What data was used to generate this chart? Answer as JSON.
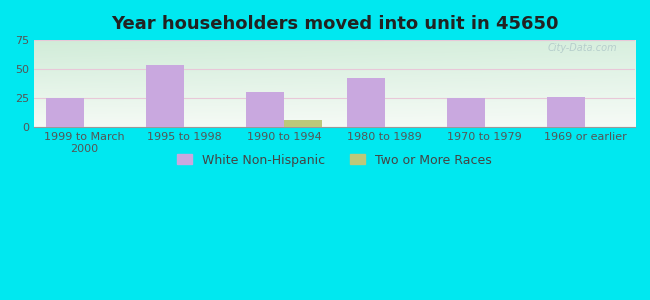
{
  "title": "Year householders moved into unit in 45650",
  "categories": [
    "1999 to March\n2000",
    "1995 to 1998",
    "1990 to 1994",
    "1980 to 1989",
    "1970 to 1979",
    "1969 or earlier"
  ],
  "white_non_hispanic": [
    25,
    54,
    30,
    42,
    25,
    26
  ],
  "two_or_more_races": [
    0,
    0,
    6,
    0,
    0,
    0
  ],
  "bar_color_white": "#c9a8df",
  "bar_color_two": "#bcc87a",
  "ylim": [
    0,
    75
  ],
  "yticks": [
    0,
    25,
    50,
    75
  ],
  "background_outer": "#00e8f0",
  "grad_top": "#d0ecd8",
  "grad_bottom": "#f5faf5",
  "title_fontsize": 13,
  "tick_fontsize": 8,
  "legend_fontsize": 9,
  "bar_width": 0.38,
  "grid_color": "#e8c8d8",
  "watermark_color": "#b0c8c8"
}
